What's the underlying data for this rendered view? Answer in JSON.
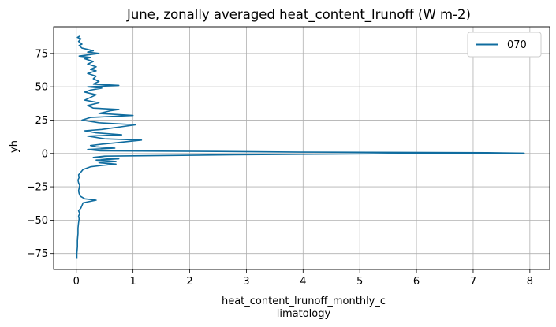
{
  "chart_data": {
    "type": "line",
    "title": "June, zonally averaged heat_content_lrunoff (W m-2)",
    "xlabel_lines": [
      "heat_content_lrunoff_monthly_c",
      "limatology"
    ],
    "ylabel": "yh",
    "xlim": [
      -0.4,
      8.35
    ],
    "ylim": [
      -87,
      95
    ],
    "xticks": [
      0,
      1,
      2,
      3,
      4,
      5,
      6,
      7,
      8
    ],
    "yticks": [
      -75,
      -50,
      -25,
      0,
      25,
      50,
      75
    ],
    "xtick_labels": [
      "0",
      "1",
      "2",
      "3",
      "4",
      "5",
      "6",
      "7",
      "8"
    ],
    "ytick_labels": [
      "−75",
      "−50",
      "−25",
      "0",
      "25",
      "50",
      "75"
    ],
    "grid": true,
    "legend_position": "top-right",
    "series": [
      {
        "name": "070",
        "color": "#0f6c9f",
        "points": [
          [
            0.01,
            -79
          ],
          [
            0.01,
            -75
          ],
          [
            0.02,
            -70
          ],
          [
            0.02,
            -65
          ],
          [
            0.03,
            -60
          ],
          [
            0.03,
            -56
          ],
          [
            0.04,
            -52
          ],
          [
            0.05,
            -49
          ],
          [
            0.04,
            -47
          ],
          [
            0.06,
            -45
          ],
          [
            0.04,
            -43
          ],
          [
            0.08,
            -41
          ],
          [
            0.1,
            -39
          ],
          [
            0.12,
            -37
          ],
          [
            0.35,
            -35
          ],
          [
            0.15,
            -34
          ],
          [
            0.07,
            -32
          ],
          [
            0.05,
            -30
          ],
          [
            0.04,
            -28
          ],
          [
            0.05,
            -26
          ],
          [
            0.06,
            -24
          ],
          [
            0.04,
            -22
          ],
          [
            0.03,
            -20
          ],
          [
            0.05,
            -18
          ],
          [
            0.04,
            -16
          ],
          [
            0.08,
            -14
          ],
          [
            0.12,
            -12
          ],
          [
            0.25,
            -10
          ],
          [
            0.45,
            -9
          ],
          [
            0.7,
            -8
          ],
          [
            0.4,
            -7
          ],
          [
            0.7,
            -6
          ],
          [
            0.35,
            -5
          ],
          [
            0.75,
            -4
          ],
          [
            0.3,
            -3
          ],
          [
            0.5,
            -2
          ],
          [
            2.8,
            -1
          ],
          [
            5.5,
            -0.2
          ],
          [
            7.9,
            0.2
          ],
          [
            7.25,
            0.6
          ],
          [
            4.0,
            1.0
          ],
          [
            2.5,
            1.5
          ],
          [
            0.4,
            2.0
          ],
          [
            0.2,
            3.0
          ],
          [
            0.68,
            4.0
          ],
          [
            0.35,
            5.0
          ],
          [
            0.25,
            6.0
          ],
          [
            0.45,
            7.0
          ],
          [
            0.7,
            8.0
          ],
          [
            1.15,
            10.0
          ],
          [
            0.5,
            11.0
          ],
          [
            0.2,
            13.0
          ],
          [
            0.8,
            14.0
          ],
          [
            0.35,
            15.5
          ],
          [
            0.15,
            17.0
          ],
          [
            0.45,
            18.0
          ],
          [
            1.05,
            21.5
          ],
          [
            0.4,
            23.0
          ],
          [
            0.1,
            25.0
          ],
          [
            0.25,
            27.0
          ],
          [
            1.0,
            28.5
          ],
          [
            0.4,
            30.0
          ],
          [
            0.6,
            32.0
          ],
          [
            0.75,
            33.0
          ],
          [
            0.3,
            34.0
          ],
          [
            0.2,
            36.0
          ],
          [
            0.4,
            38.0
          ],
          [
            0.15,
            40.0
          ],
          [
            0.25,
            42.0
          ],
          [
            0.35,
            44.0
          ],
          [
            0.15,
            46.0
          ],
          [
            0.25,
            47.5
          ],
          [
            0.45,
            49.0
          ],
          [
            0.2,
            50.0
          ],
          [
            0.75,
            51.0
          ],
          [
            0.3,
            52.0
          ],
          [
            0.4,
            54.0
          ],
          [
            0.3,
            56.0
          ],
          [
            0.35,
            58.0
          ],
          [
            0.2,
            60.0
          ],
          [
            0.35,
            62.0
          ],
          [
            0.25,
            63.0
          ],
          [
            0.35,
            65.0
          ],
          [
            0.2,
            67.0
          ],
          [
            0.3,
            69.0
          ],
          [
            0.15,
            71.0
          ],
          [
            0.25,
            72.0
          ],
          [
            0.05,
            73.0
          ],
          [
            0.4,
            75.0
          ],
          [
            0.2,
            76.0
          ],
          [
            0.3,
            77.0
          ],
          [
            0.1,
            79.0
          ],
          [
            0.05,
            81.0
          ],
          [
            0.1,
            82.0
          ],
          [
            0.04,
            84.0
          ],
          [
            0.08,
            86.0
          ],
          [
            0.02,
            87.0
          ],
          [
            0.06,
            88.0
          ]
        ]
      }
    ]
  }
}
